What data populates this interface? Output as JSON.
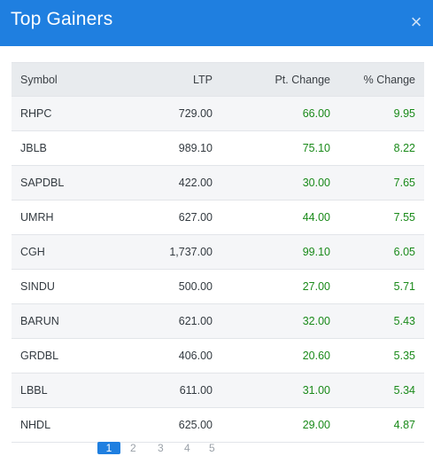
{
  "modal": {
    "title": "Top Gainers",
    "close_label": "×"
  },
  "colors": {
    "header": "#1f7fe0",
    "positive": "#1a8a1a"
  },
  "table": {
    "headers": {
      "symbol": "Symbol",
      "ltp": "LTP",
      "pt_change": "Pt. Change",
      "pct_change": "% Change"
    },
    "rows": [
      {
        "symbol": "RHPC",
        "ltp": "729.00",
        "pt_change": "66.00",
        "pct_change": "9.95"
      },
      {
        "symbol": "JBLB",
        "ltp": "989.10",
        "pt_change": "75.10",
        "pct_change": "8.22"
      },
      {
        "symbol": "SAPDBL",
        "ltp": "422.00",
        "pt_change": "30.00",
        "pct_change": "7.65"
      },
      {
        "symbol": "UMRH",
        "ltp": "627.00",
        "pt_change": "44.00",
        "pct_change": "7.55"
      },
      {
        "symbol": "CGH",
        "ltp": "1,737.00",
        "pt_change": "99.10",
        "pct_change": "6.05"
      },
      {
        "symbol": "SINDU",
        "ltp": "500.00",
        "pt_change": "27.00",
        "pct_change": "5.71"
      },
      {
        "symbol": "BARUN",
        "ltp": "621.00",
        "pt_change": "32.00",
        "pct_change": "5.43"
      },
      {
        "symbol": "GRDBL",
        "ltp": "406.00",
        "pt_change": "20.60",
        "pct_change": "5.35"
      },
      {
        "symbol": "LBBL",
        "ltp": "611.00",
        "pt_change": "31.00",
        "pct_change": "5.34"
      },
      {
        "symbol": "NHDL",
        "ltp": "625.00",
        "pt_change": "29.00",
        "pct_change": "4.87"
      }
    ]
  },
  "pagination": {
    "pages": [
      "1",
      "2",
      "3",
      "4",
      "5"
    ]
  }
}
